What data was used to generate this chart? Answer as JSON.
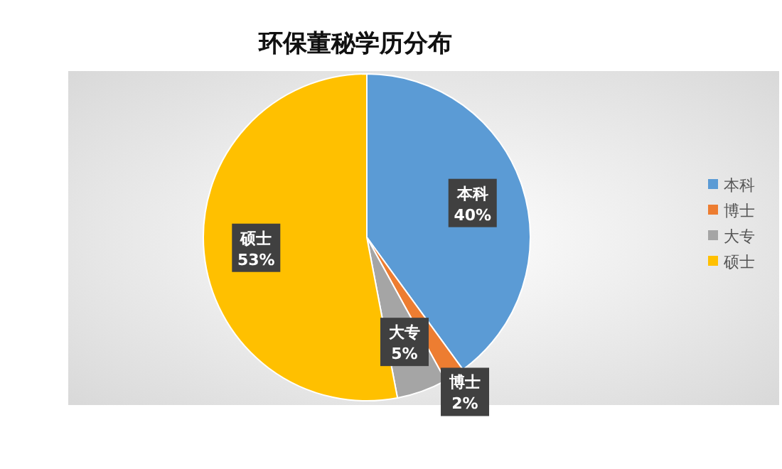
{
  "chart_data": {
    "type": "pie",
    "title": "环保董秘学历分布",
    "categories": [
      "本科",
      "博士",
      "大专",
      "硕士"
    ],
    "values": [
      40,
      2,
      5,
      53
    ],
    "colors": [
      "#5b9bd5",
      "#ed7d31",
      "#a5a5a5",
      "#ffc000"
    ],
    "value_labels": [
      "40%",
      "2%",
      "5%",
      "53%"
    ],
    "legend": "right"
  }
}
